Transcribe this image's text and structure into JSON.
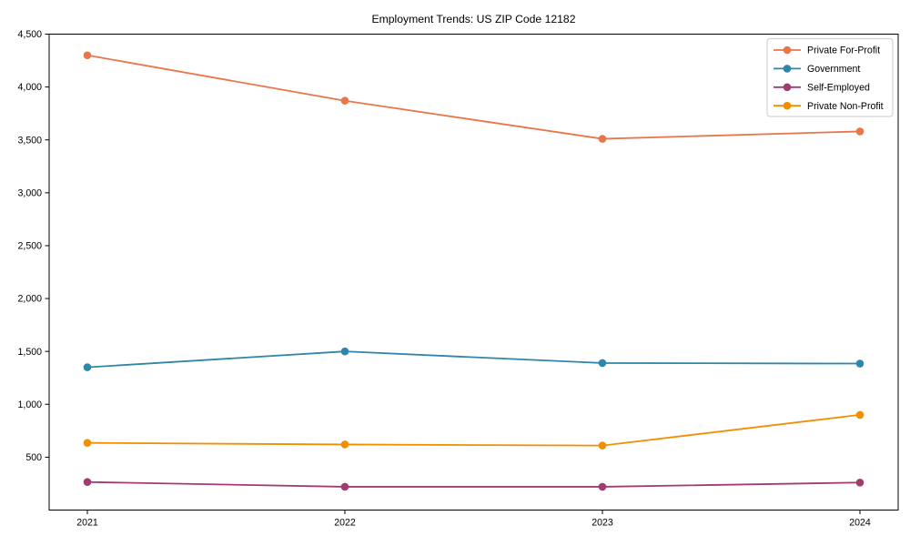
{
  "window": {
    "background_color": "#ffffff"
  },
  "chart_data": {
    "type": "line",
    "title": "Employment Trends: US ZIP Code 12182",
    "xlabel": "",
    "ylabel": "",
    "categories": [
      "2021",
      "2022",
      "2023",
      "2024"
    ],
    "series": [
      {
        "name": "Private For-Profit",
        "color": "#e8764b",
        "values": [
          4300,
          3870,
          3510,
          3580
        ]
      },
      {
        "name": "Government",
        "color": "#2e86ab",
        "values": [
          1350,
          1500,
          1390,
          1385
        ]
      },
      {
        "name": "Self-Employed",
        "color": "#a23b72",
        "values": [
          265,
          220,
          220,
          260
        ]
      },
      {
        "name": "Private Non-Profit",
        "color": "#f18f01",
        "values": [
          635,
          620,
          610,
          900
        ]
      }
    ],
    "ylim": [
      0,
      4500
    ],
    "yticks": [
      500,
      1000,
      1500,
      2000,
      2500,
      3000,
      3500,
      4000,
      4500
    ],
    "ytick_labels": [
      "500",
      "1,000",
      "1,500",
      "2,000",
      "2,500",
      "3,000",
      "3,500",
      "4,000",
      "4,500"
    ],
    "grid": false,
    "legend_position": "upper right",
    "marker": "circle",
    "axis_color": "#000000",
    "legend_border_color": "#cccccc",
    "legend_background": "#ffffff"
  }
}
